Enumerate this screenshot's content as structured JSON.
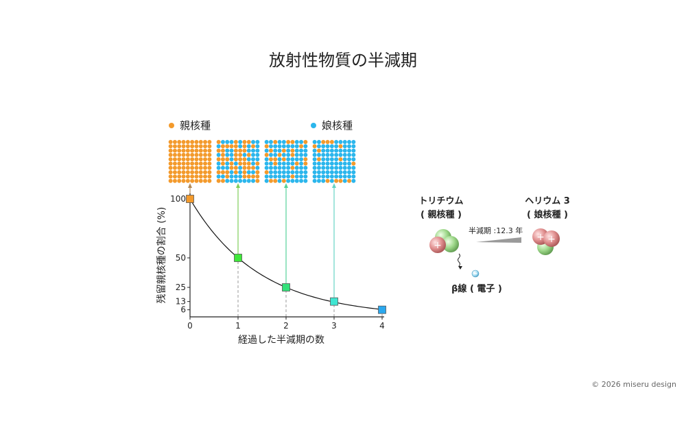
{
  "title": "放射性物質の半減期",
  "legend": {
    "parent": {
      "label": "親核種",
      "color": "#f39a2c"
    },
    "daughter": {
      "label": "娘核種",
      "color": "#2bb6ec"
    }
  },
  "chart_data": {
    "type": "line",
    "xlabel": "経過した半減期の数",
    "ylabel": "残留親核種の割合 (%)",
    "x_ticks": [
      "0",
      "1",
      "2",
      "3",
      "4"
    ],
    "y_ticks": [
      "100",
      "50",
      "25",
      "13",
      "6"
    ],
    "xlim": [
      0,
      4
    ],
    "ylim": [
      0,
      100
    ],
    "points": [
      {
        "x": 0,
        "y": 100,
        "color": "#f39a2c"
      },
      {
        "x": 1,
        "y": 50,
        "color": "#3fe83a"
      },
      {
        "x": 2,
        "y": 25,
        "color": "#33e27a"
      },
      {
        "x": 3,
        "y": 13,
        "color": "#3fe6d2"
      },
      {
        "x": 4,
        "y": 6,
        "color": "#2aa8ef"
      }
    ],
    "grids": [
      {
        "x": 0,
        "parent_fraction": 1.0,
        "arrow_color": "#b38a58"
      },
      {
        "x": 1,
        "parent_fraction": 0.5,
        "arrow_color": "#7fcf5a"
      },
      {
        "x": 2,
        "parent_fraction": 0.25,
        "arrow_color": "#55d39a"
      },
      {
        "x": 3,
        "parent_fraction": 0.13,
        "arrow_color": "#66d4c4"
      }
    ]
  },
  "decay": {
    "tritium": "トリチウム",
    "tritium_role": "( 親核種 )",
    "helium": "ヘリウム 3",
    "helium_role": "( 娘核種 )",
    "half_life": "半減期 :12.3 年",
    "beta": "β線 ( 電子 )"
  },
  "copyright": "© 2026 miseru design"
}
